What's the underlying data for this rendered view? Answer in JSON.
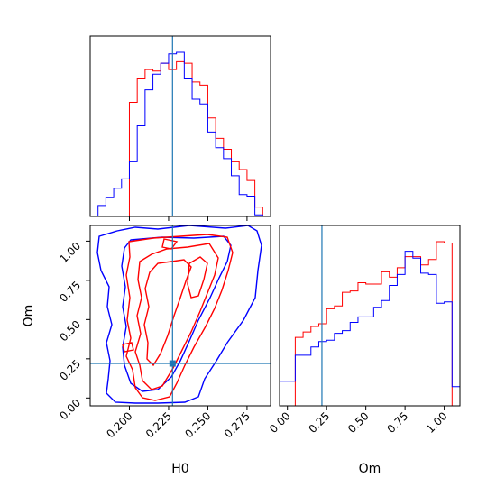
{
  "chart_data": [
    {
      "type": "histogram",
      "panel": "H0 marginal",
      "bin_edges": [
        0.175,
        0.18,
        0.185,
        0.19,
        0.195,
        0.2,
        0.205,
        0.21,
        0.215,
        0.22,
        0.225,
        0.23,
        0.235,
        0.24,
        0.245,
        0.25,
        0.255,
        0.26,
        0.265,
        0.27,
        0.275,
        0.28,
        0.285,
        0.29
      ],
      "series": [
        {
          "color": "#ff0000",
          "values": [
            0,
            0,
            0,
            0,
            0,
            73,
            88,
            94,
            93,
            98,
            94,
            99,
            98,
            86,
            84,
            63,
            50,
            43,
            35,
            30,
            23,
            6,
            0
          ]
        },
        {
          "color": "#0000ff",
          "values": [
            0,
            7,
            12,
            18,
            24,
            35,
            58,
            81,
            91,
            98,
            104,
            105,
            88,
            75,
            72,
            54,
            44,
            37,
            26,
            14,
            13,
            1,
            0
          ]
        }
      ],
      "truth_line": {
        "x": 0.2275,
        "color": "#1f77b4"
      },
      "xlim": [
        0.175,
        0.29
      ]
    },
    {
      "type": "contour",
      "panel": "H0 vs Om",
      "xlabel": "H0",
      "ylabel": "Om",
      "xlim": [
        0.175,
        0.29
      ],
      "ylim": [
        -0.05,
        1.1
      ],
      "xticks": [
        "0.200",
        "0.225",
        "0.250",
        "0.275"
      ],
      "yticks": [
        "0.00",
        "0.25",
        "0.50",
        "0.75",
        "1.00"
      ],
      "truth_point": {
        "x": 0.2275,
        "y": 0.22
      },
      "truth_color": "#1f77b4",
      "series": [
        {
          "color": "#0000ff",
          "levels": 2
        },
        {
          "color": "#ff0000",
          "levels": 3
        }
      ]
    },
    {
      "type": "histogram",
      "panel": "Om marginal",
      "xlabel": "Om",
      "bin_edges": [
        -0.05,
        0.0,
        0.05,
        0.1,
        0.15,
        0.2,
        0.25,
        0.3,
        0.35,
        0.4,
        0.45,
        0.5,
        0.55,
        0.6,
        0.65,
        0.7,
        0.75,
        0.8,
        0.85,
        0.9,
        0.95,
        1.0,
        1.05,
        1.1
      ],
      "series": [
        {
          "color": "#ff0000",
          "values": [
            0,
            0,
            50,
            54,
            58,
            60,
            71,
            73,
            83,
            84,
            90,
            89,
            89,
            98,
            94,
            101,
            109,
            109,
            103,
            107,
            120,
            119,
            0
          ]
        },
        {
          "color": "#0000ff",
          "values": [
            18,
            18,
            37,
            37,
            43,
            47,
            48,
            53,
            55,
            61,
            65,
            65,
            72,
            77,
            88,
            96,
            113,
            108,
            97,
            96,
            75,
            76,
            14
          ]
        }
      ],
      "truth_line": {
        "x": 0.22,
        "color": "#1f77b4"
      },
      "xlim": [
        -0.05,
        1.1
      ],
      "xticks": [
        "0.00",
        "0.25",
        "0.50",
        "0.75",
        "1.00"
      ]
    }
  ]
}
